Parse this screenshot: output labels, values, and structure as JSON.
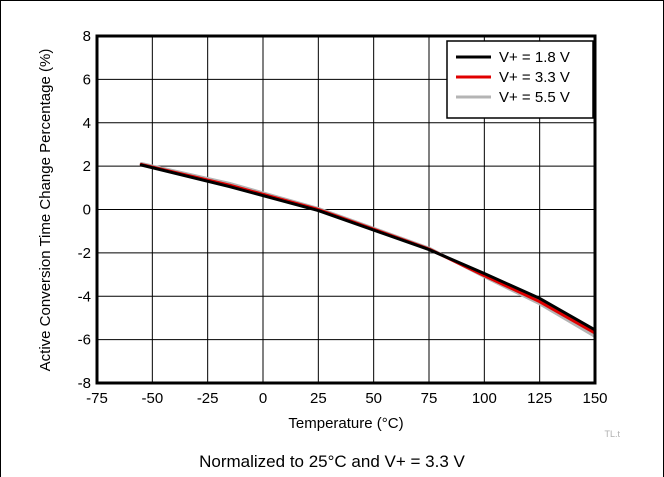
{
  "chart_data": {
    "type": "line",
    "title": "",
    "xlabel": "Temperature (°C)",
    "ylabel": "Active Conversion Time Change Percentage (%)",
    "xlim": [
      -75,
      150
    ],
    "ylim": [
      -8,
      8
    ],
    "xticks": [
      -75,
      -50,
      -25,
      0,
      25,
      50,
      75,
      100,
      125,
      150
    ],
    "yticks": [
      -8,
      -6,
      -4,
      -2,
      0,
      2,
      4,
      6,
      8
    ],
    "grid": true,
    "legend_position": "top-right",
    "series": [
      {
        "name": "V+ = 1.8 V",
        "color": "#000000",
        "x": [
          -55,
          -15,
          25,
          75,
          100,
          125,
          150
        ],
        "y": [
          2.05,
          1.05,
          -0.05,
          -1.85,
          -2.95,
          -4.1,
          -5.55
        ]
      },
      {
        "name": "V+ = 3.3 V",
        "color": "#e00000",
        "x": [
          -55,
          -15,
          25,
          75,
          100,
          125,
          150
        ],
        "y": [
          2.08,
          1.12,
          0.0,
          -1.82,
          -3.05,
          -4.25,
          -5.7
        ]
      },
      {
        "name": "V+ = 5.5 V",
        "color": "#b4b4b4",
        "x": [
          -55,
          -15,
          25,
          75,
          100,
          125,
          150
        ],
        "y": [
          2.12,
          1.2,
          0.05,
          -1.78,
          -3.1,
          -4.35,
          -5.85
        ]
      }
    ]
  },
  "figure_id": "TL.t",
  "caption": "Normalized to 25°C and V+ = 3.3 V"
}
